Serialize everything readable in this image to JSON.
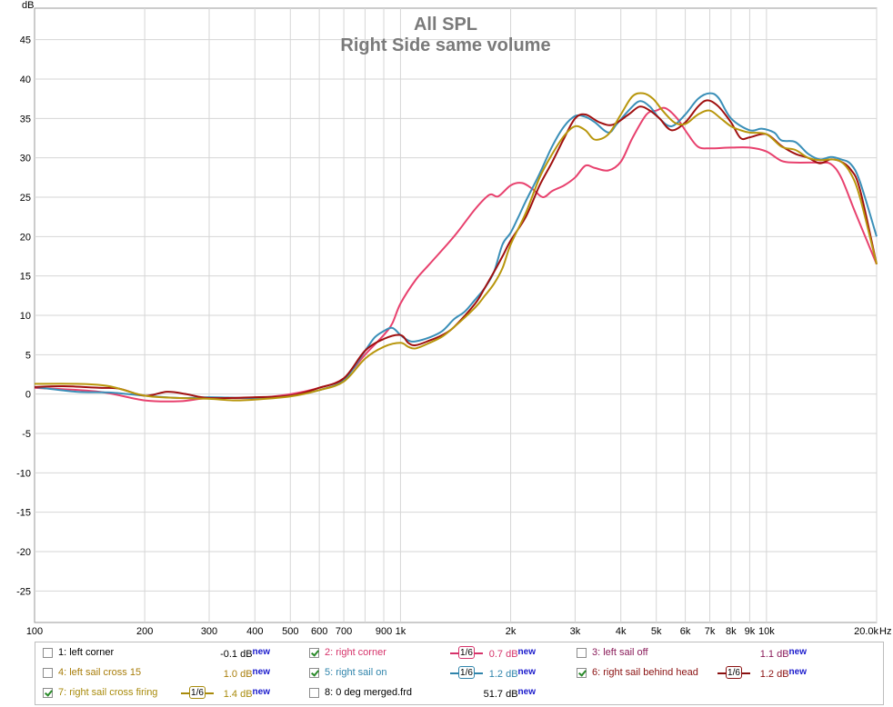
{
  "chart_data": {
    "type": "line",
    "title": "All SPL",
    "subtitle": "Right Side same volume",
    "ylabel": "dB",
    "xunit": "Hz",
    "xscale": "log",
    "xlim": [
      100,
      20000
    ],
    "ylim": [
      -29,
      49
    ],
    "grid": true,
    "yticks": [
      -25,
      -20,
      -15,
      -10,
      -5,
      0,
      5,
      10,
      15,
      20,
      25,
      30,
      35,
      40,
      45
    ],
    "xticks": [
      {
        "v": 100,
        "l": "100"
      },
      {
        "v": 200,
        "l": "200"
      },
      {
        "v": 300,
        "l": "300"
      },
      {
        "v": 400,
        "l": "400"
      },
      {
        "v": 500,
        "l": "500"
      },
      {
        "v": 600,
        "l": "600"
      },
      {
        "v": 700,
        "l": "700"
      },
      {
        "v": 900,
        "l": "900"
      },
      {
        "v": 1000,
        "l": "1k"
      },
      {
        "v": 2000,
        "l": "2k"
      },
      {
        "v": 3000,
        "l": "3k"
      },
      {
        "v": 4000,
        "l": "4k"
      },
      {
        "v": 5000,
        "l": "5k"
      },
      {
        "v": 6000,
        "l": "6k"
      },
      {
        "v": 7000,
        "l": "7k"
      },
      {
        "v": 8000,
        "l": "8k"
      },
      {
        "v": 9000,
        "l": "9k"
      },
      {
        "v": 10000,
        "l": "10k"
      },
      {
        "v": 20000,
        "l": "20.0k"
      }
    ],
    "series": [
      {
        "name": "2: right corner",
        "color": "#e8416e",
        "points": [
          [
            100,
            0.8
          ],
          [
            150,
            0.3
          ],
          [
            200,
            -0.8
          ],
          [
            250,
            -0.9
          ],
          [
            300,
            -0.5
          ],
          [
            400,
            -0.5
          ],
          [
            500,
            0
          ],
          [
            600,
            0.8
          ],
          [
            700,
            2
          ],
          [
            800,
            5
          ],
          [
            900,
            7.5
          ],
          [
            950,
            9
          ],
          [
            1000,
            11.5
          ],
          [
            1100,
            14.5
          ],
          [
            1200,
            16.5
          ],
          [
            1400,
            20
          ],
          [
            1600,
            23.5
          ],
          [
            1750,
            25.3
          ],
          [
            1850,
            25.1
          ],
          [
            2000,
            26.5
          ],
          [
            2150,
            26.8
          ],
          [
            2300,
            26
          ],
          [
            2450,
            25
          ],
          [
            2600,
            25.8
          ],
          [
            2800,
            26.5
          ],
          [
            3000,
            27.5
          ],
          [
            3200,
            29
          ],
          [
            3400,
            28.7
          ],
          [
            3700,
            28.4
          ],
          [
            4000,
            29.5
          ],
          [
            4300,
            32.5
          ],
          [
            4700,
            35.5
          ],
          [
            5000,
            36
          ],
          [
            5300,
            36.3
          ],
          [
            5700,
            35
          ],
          [
            6100,
            33
          ],
          [
            6500,
            31.4
          ],
          [
            7000,
            31.2
          ],
          [
            8000,
            31.3
          ],
          [
            9000,
            31.3
          ],
          [
            10000,
            30.8
          ],
          [
            11000,
            29.6
          ],
          [
            12000,
            29.4
          ],
          [
            14000,
            29.4
          ],
          [
            15000,
            29.2
          ],
          [
            16000,
            27.5
          ],
          [
            17500,
            23
          ],
          [
            20000,
            16.5
          ]
        ]
      },
      {
        "name": "5: right sail on",
        "color": "#3a8fb8",
        "points": [
          [
            100,
            0.9
          ],
          [
            130,
            0.3
          ],
          [
            160,
            0.2
          ],
          [
            200,
            -0.2
          ],
          [
            250,
            -0.5
          ],
          [
            300,
            -0.4
          ],
          [
            400,
            -0.5
          ],
          [
            500,
            -0.2
          ],
          [
            600,
            0.5
          ],
          [
            700,
            1.8
          ],
          [
            800,
            5.5
          ],
          [
            850,
            7.2
          ],
          [
            900,
            8
          ],
          [
            950,
            8.4
          ],
          [
            1000,
            7.5
          ],
          [
            1050,
            6.8
          ],
          [
            1100,
            6.7
          ],
          [
            1200,
            7.2
          ],
          [
            1300,
            8
          ],
          [
            1400,
            9.5
          ],
          [
            1500,
            10.5
          ],
          [
            1600,
            12
          ],
          [
            1700,
            13.5
          ],
          [
            1800,
            15.5
          ],
          [
            1900,
            19
          ],
          [
            2000,
            20.5
          ],
          [
            2100,
            22.5
          ],
          [
            2200,
            24.5
          ],
          [
            2400,
            28
          ],
          [
            2600,
            31.5
          ],
          [
            2800,
            34
          ],
          [
            3000,
            35.3
          ],
          [
            3200,
            35.2
          ],
          [
            3400,
            34.5
          ],
          [
            3700,
            33.2
          ],
          [
            3900,
            34.3
          ],
          [
            4200,
            36
          ],
          [
            4500,
            37.2
          ],
          [
            4800,
            36.5
          ],
          [
            5100,
            35
          ],
          [
            5500,
            34
          ],
          [
            6000,
            35.5
          ],
          [
            6500,
            37.5
          ],
          [
            7000,
            38.2
          ],
          [
            7400,
            37.6
          ],
          [
            8000,
            35
          ],
          [
            9000,
            33.5
          ],
          [
            9700,
            33.7
          ],
          [
            10500,
            33.2
          ],
          [
            11000,
            32.2
          ],
          [
            12000,
            32
          ],
          [
            13000,
            30.5
          ],
          [
            14000,
            29.8
          ],
          [
            15000,
            30.1
          ],
          [
            16000,
            29.8
          ],
          [
            17000,
            29.2
          ],
          [
            18000,
            27
          ],
          [
            20000,
            20
          ]
        ]
      },
      {
        "name": "6: right sail behind head",
        "color": "#a01010",
        "points": [
          [
            100,
            0.9
          ],
          [
            120,
            1.0
          ],
          [
            150,
            0.8
          ],
          [
            170,
            0.7
          ],
          [
            200,
            -0.2
          ],
          [
            230,
            0.3
          ],
          [
            260,
            0
          ],
          [
            300,
            -0.5
          ],
          [
            400,
            -0.4
          ],
          [
            500,
            -0.2
          ],
          [
            600,
            0.8
          ],
          [
            700,
            2
          ],
          [
            800,
            5.5
          ],
          [
            900,
            7
          ],
          [
            1000,
            7.5
          ],
          [
            1050,
            6.5
          ],
          [
            1100,
            6.2
          ],
          [
            1200,
            6.8
          ],
          [
            1300,
            7.5
          ],
          [
            1400,
            8.5
          ],
          [
            1600,
            11.5
          ],
          [
            1700,
            13.5
          ],
          [
            1800,
            15.5
          ],
          [
            1900,
            17.5
          ],
          [
            2000,
            19.5
          ],
          [
            2200,
            22.5
          ],
          [
            2400,
            26.5
          ],
          [
            2600,
            29.5
          ],
          [
            2800,
            32.5
          ],
          [
            3000,
            35
          ],
          [
            3200,
            35.5
          ],
          [
            3500,
            34.5
          ],
          [
            3800,
            34.2
          ],
          [
            4200,
            35.5
          ],
          [
            4500,
            36.5
          ],
          [
            4800,
            36
          ],
          [
            5100,
            35
          ],
          [
            5500,
            33.5
          ],
          [
            6000,
            34.5
          ],
          [
            6500,
            36.5
          ],
          [
            6900,
            37.3
          ],
          [
            7400,
            36.5
          ],
          [
            8000,
            34.5
          ],
          [
            8500,
            32.5
          ],
          [
            9000,
            32.6
          ],
          [
            10000,
            33
          ],
          [
            11000,
            31.5
          ],
          [
            12000,
            30.5
          ],
          [
            13000,
            30
          ],
          [
            14000,
            29.3
          ],
          [
            15000,
            29.8
          ],
          [
            16000,
            29.5
          ],
          [
            17000,
            28.5
          ],
          [
            18000,
            26
          ],
          [
            20000,
            16.5
          ]
        ]
      },
      {
        "name": "7: right sail cross firing",
        "color": "#b8960c",
        "points": [
          [
            100,
            1.3
          ],
          [
            130,
            1.3
          ],
          [
            160,
            1.0
          ],
          [
            200,
            -0.2
          ],
          [
            250,
            -0.5
          ],
          [
            300,
            -0.6
          ],
          [
            350,
            -0.8
          ],
          [
            400,
            -0.7
          ],
          [
            500,
            -0.3
          ],
          [
            600,
            0.5
          ],
          [
            700,
            1.6
          ],
          [
            800,
            4.5
          ],
          [
            900,
            6
          ],
          [
            1000,
            6.5
          ],
          [
            1050,
            6
          ],
          [
            1100,
            5.8
          ],
          [
            1200,
            6.5
          ],
          [
            1300,
            7.3
          ],
          [
            1400,
            8.5
          ],
          [
            1600,
            11
          ],
          [
            1700,
            12.5
          ],
          [
            1800,
            14
          ],
          [
            1900,
            16
          ],
          [
            2000,
            19
          ],
          [
            2200,
            23
          ],
          [
            2400,
            27.5
          ],
          [
            2600,
            30.5
          ],
          [
            2800,
            32.8
          ],
          [
            3000,
            34
          ],
          [
            3200,
            33.5
          ],
          [
            3400,
            32.3
          ],
          [
            3700,
            33
          ],
          [
            4000,
            35.5
          ],
          [
            4300,
            37.8
          ],
          [
            4600,
            38.2
          ],
          [
            4900,
            37.5
          ],
          [
            5200,
            36
          ],
          [
            5600,
            34.5
          ],
          [
            6000,
            34.3
          ],
          [
            6500,
            35.5
          ],
          [
            7000,
            36
          ],
          [
            7500,
            35
          ],
          [
            8000,
            34
          ],
          [
            8500,
            33.5
          ],
          [
            9000,
            33.2
          ],
          [
            10000,
            33
          ],
          [
            11000,
            31.4
          ],
          [
            12000,
            31
          ],
          [
            13000,
            30
          ],
          [
            14000,
            29.7
          ],
          [
            15000,
            29.8
          ],
          [
            16000,
            29.5
          ],
          [
            17000,
            28
          ],
          [
            18000,
            25
          ],
          [
            20000,
            16.5
          ]
        ]
      }
    ]
  },
  "legend": [
    {
      "label": "1: left corner",
      "checked": false,
      "value": "-0.1 dB",
      "new": "new",
      "color": "#000000"
    },
    {
      "label": "2: right corner",
      "checked": true,
      "value": "0.7 dB",
      "new": "new",
      "color": "#d6336a",
      "smooth": "1/6"
    },
    {
      "label": "3: left sail off",
      "checked": false,
      "value": "1.1 dB",
      "new": "new",
      "color": "#8a1c5a"
    },
    {
      "label": "4: left sail cross 15",
      "checked": false,
      "value": "1.0 dB",
      "new": "new",
      "color": "#a87d0a"
    },
    {
      "label": "5: right sail on",
      "checked": true,
      "value": "1.2 dB",
      "new": "new",
      "color": "#2f84ab",
      "smooth": "1/6"
    },
    {
      "label": "6: right sail behind head",
      "checked": true,
      "value": "1.2 dB",
      "new": "new",
      "color": "#8a1010",
      "smooth": "1/6"
    },
    {
      "label": "7: right sail cross firing",
      "checked": true,
      "value": "1.4 dB",
      "new": "new",
      "color": "#a88a0a",
      "smooth": "1/6"
    },
    {
      "label": "8: 0 deg merged.frd",
      "checked": false,
      "value": "51.7 dB",
      "new": "new",
      "color": "#000000"
    }
  ]
}
